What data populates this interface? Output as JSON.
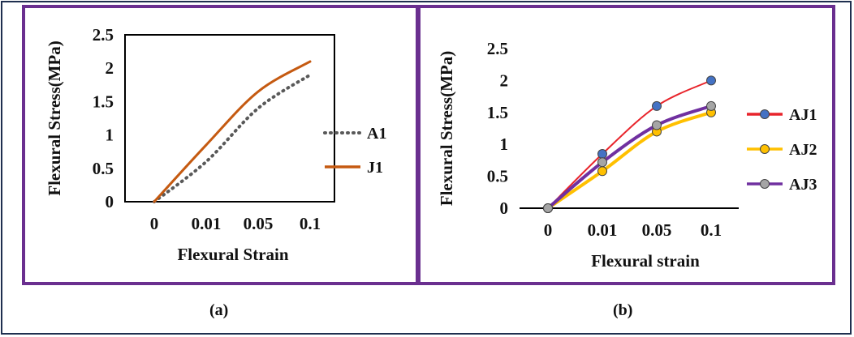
{
  "captions": {
    "a": "(a)",
    "b": "(b)"
  },
  "colors": {
    "frame": "#1f2f4f",
    "panel_border": "#6a2f8f"
  },
  "chart_data": [
    {
      "type": "line",
      "panel": "(a)",
      "title": "",
      "xlabel": "Flexural Strain",
      "ylabel": "Flexural Stress(MPa)",
      "categories": [
        "0",
        "0.01",
        "0.05",
        "0.1"
      ],
      "ylim": [
        0,
        2.5
      ],
      "yticks": [
        "0",
        "0.5",
        "1",
        "1.5",
        "2",
        "2.5"
      ],
      "grid": false,
      "legend_position": "right",
      "series": [
        {
          "name": "A1",
          "color": "#595959",
          "style": "dotted",
          "values": [
            0,
            0.6,
            1.4,
            1.9
          ]
        },
        {
          "name": "J1",
          "color": "#c55a11",
          "style": "solid",
          "values": [
            0,
            0.85,
            1.65,
            2.1
          ]
        }
      ]
    },
    {
      "type": "line",
      "panel": "(b)",
      "title": "",
      "xlabel": "Flexural strain",
      "ylabel": "Flexural Stress(MPa)",
      "categories": [
        "0",
        "0.01",
        "0.05",
        "0.1"
      ],
      "ylim": [
        0,
        2.5
      ],
      "yticks": [
        "0",
        "0.5",
        "1",
        "1.5",
        "2",
        "2.5"
      ],
      "grid": false,
      "legend_position": "right",
      "series": [
        {
          "name": "AJ1",
          "color": "#e8242b",
          "marker": "#4472c4",
          "values": [
            0,
            0.85,
            1.6,
            2.0
          ]
        },
        {
          "name": "AJ2",
          "color": "#ffc000",
          "marker": "#ffc000",
          "values": [
            0,
            0.58,
            1.2,
            1.5
          ]
        },
        {
          "name": "AJ3",
          "color": "#7030a0",
          "marker": "#a5a5a5",
          "values": [
            0,
            0.72,
            1.3,
            1.6
          ]
        }
      ]
    }
  ]
}
